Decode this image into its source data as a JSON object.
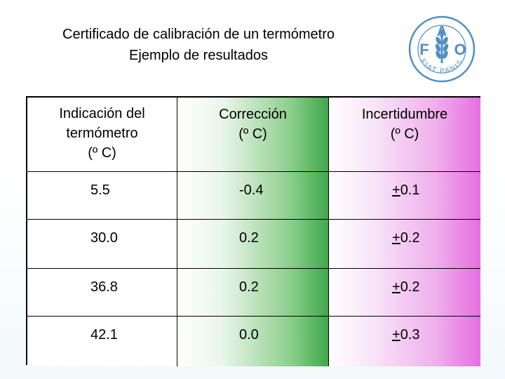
{
  "title": {
    "line1": "Certificado de calibración de un termómetro",
    "line2": "Ejemplo de resultados"
  },
  "logo": {
    "letters": [
      "F",
      "A",
      "O"
    ],
    "motto": "FIAT PANIS",
    "icon": "fao-wheat-emblem-icon",
    "color": "#4f8fc4"
  },
  "table": {
    "headers": [
      [
        "Indicación del",
        "termómetro",
        "(º C)"
      ],
      [
        "Corrección",
        "(º C)"
      ],
      [
        "Incertidumbre",
        "(º C)"
      ]
    ],
    "rows": [
      {
        "indication": "5.5",
        "correction": "-0.4",
        "uncertainty_sign": "+",
        "uncertainty": "0.1"
      },
      {
        "indication": "30.0",
        "correction": "0.2",
        "uncertainty_sign": "+",
        "uncertainty": "0.2"
      },
      {
        "indication": "36.8",
        "correction": "0.2",
        "uncertainty_sign": "+",
        "uncertainty": "0.2"
      },
      {
        "indication": "42.1",
        "correction": "0.0",
        "uncertainty_sign": "+",
        "uncertainty": "0.3"
      }
    ],
    "colors": {
      "col2_gradient_end": "#3fa84a",
      "col3_gradient_end": "#e66ee2"
    }
  }
}
